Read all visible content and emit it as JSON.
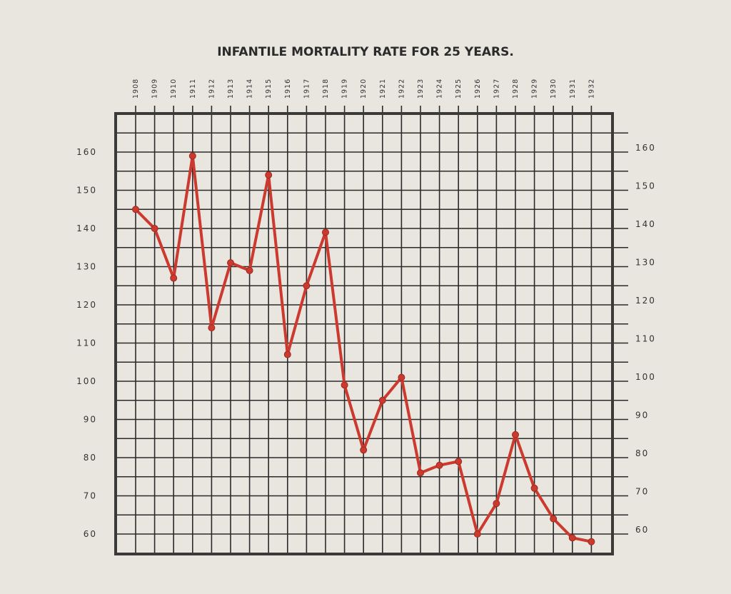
{
  "chart_data": {
    "type": "line",
    "title": "INFANTILE MORTALITY RATE FOR 25 YEARS.",
    "xlabel": "",
    "ylabel": "",
    "categories": [
      "1908",
      "1909",
      "1910",
      "1911",
      "1912",
      "1913",
      "1914",
      "1915",
      "1916",
      "1917",
      "1918",
      "1919",
      "1920",
      "1921",
      "1922",
      "1923",
      "1924",
      "1925",
      "1926",
      "1927",
      "1928",
      "1929",
      "1930",
      "1931",
      "1932"
    ],
    "values": [
      145,
      140,
      127,
      159,
      114,
      131,
      129,
      154,
      107,
      125,
      139,
      99,
      82,
      95,
      101,
      76,
      78,
      79,
      60,
      68,
      86,
      72,
      64,
      59,
      58
    ],
    "y_ticks_left": [
      60,
      70,
      80,
      90,
      100,
      110,
      120,
      130,
      140,
      150,
      160
    ],
    "y_ticks_right": [
      60,
      70,
      80,
      90,
      100,
      110,
      120,
      130,
      140,
      150,
      160
    ],
    "ylim": [
      55,
      170
    ],
    "grid": true,
    "colors": {
      "line": "#cc3a2f",
      "grid": "#2a2a2a",
      "frame": "#3a3a38",
      "background": "#e9e6e0"
    }
  }
}
